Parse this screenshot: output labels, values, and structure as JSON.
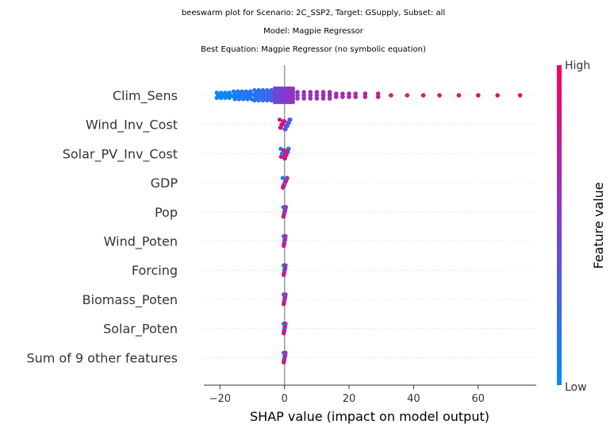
{
  "chart_data": {
    "type": "scatter",
    "subtype": "beeswarm",
    "title_lines": [
      "beeswarm plot for Scenario: 2C_SSP2, Target: GSupply, Subset: all",
      "Model: Magpie Regressor",
      "Best Equation: Magpie Regressor (no symbolic equation)"
    ],
    "xlabel": "SHAP value (impact on model output)",
    "xlim": [
      -25,
      78
    ],
    "xticks": [
      -20,
      0,
      20,
      40,
      60
    ],
    "features": [
      "Clim_Sens",
      "Wind_Inv_Cost",
      "Solar_PV_Inv_Cost",
      "GDP",
      "Pop",
      "Wind_Poten",
      "Forcing",
      "Biomass_Poten",
      "Solar_Poten",
      "Sum of 9 other features"
    ],
    "feature_spread": [
      {
        "min": -21,
        "max": 73
      },
      {
        "min": -1.5,
        "max": 1.8
      },
      {
        "min": -1.2,
        "max": 1.3
      },
      {
        "min": -0.6,
        "max": 0.8
      },
      {
        "min": -0.4,
        "max": 0.4
      },
      {
        "min": -0.3,
        "max": 0.3
      },
      {
        "min": -0.3,
        "max": 0.3
      },
      {
        "min": -0.3,
        "max": 0.3
      },
      {
        "min": -0.3,
        "max": 0.3
      },
      {
        "min": -0.3,
        "max": 0.3
      }
    ],
    "colorbar": {
      "label": "Feature value",
      "high_label": "High",
      "low_label": "Low",
      "low_color": "#008bfb",
      "high_color": "#ff0052"
    },
    "grid": "dotted horizontal per feature",
    "zero_line": true
  }
}
